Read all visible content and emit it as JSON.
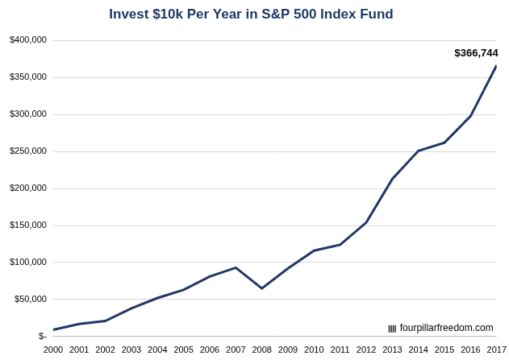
{
  "chart_data": {
    "type": "line",
    "title": "Invest $10k Per Year in S&P 500 Index Fund",
    "categories": [
      "2000",
      "2001",
      "2002",
      "2003",
      "2004",
      "2005",
      "2006",
      "2007",
      "2008",
      "2009",
      "2010",
      "2011",
      "2012",
      "2013",
      "2014",
      "2015",
      "2016",
      "2017"
    ],
    "values": [
      9000,
      17000,
      21000,
      38000,
      52000,
      63000,
      81000,
      93000,
      65000,
      92000,
      116000,
      124000,
      154000,
      213000,
      251000,
      262000,
      298000,
      366744
    ],
    "color": "#203864",
    "ylim": [
      0,
      400000
    ],
    "yticks": [
      {
        "value": 0,
        "label": "$-"
      },
      {
        "value": 50000,
        "label": "$50,000"
      },
      {
        "value": 100000,
        "label": "$100,000"
      },
      {
        "value": 150000,
        "label": "$150,000"
      },
      {
        "value": 200000,
        "label": "$200,000"
      },
      {
        "value": 250000,
        "label": "$250,000"
      },
      {
        "value": 300000,
        "label": "$300,000"
      },
      {
        "value": 350000,
        "label": "$350,000"
      },
      {
        "value": 400000,
        "label": "$400,000"
      }
    ],
    "grid": true,
    "annotations": [
      {
        "text": "$366,744",
        "x": "2017",
        "y": 366744
      }
    ],
    "watermark": "fourpillarfreedom.com"
  }
}
